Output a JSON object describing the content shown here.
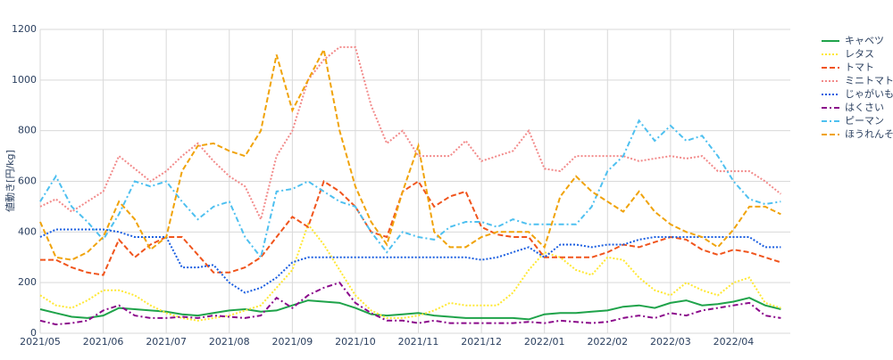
{
  "chart_data": {
    "type": "line",
    "y_label": "値動き[円/kg]",
    "x": [
      0,
      0.25,
      0.5,
      0.75,
      1,
      1.25,
      1.5,
      1.75,
      2,
      2.25,
      2.5,
      2.75,
      3,
      3.25,
      3.5,
      3.75,
      4,
      4.25,
      4.5,
      4.75,
      5,
      5.25,
      5.5,
      5.75,
      6,
      6.25,
      6.5,
      6.75,
      7,
      7.25,
      7.5,
      7.75,
      8,
      8.25,
      8.5,
      8.75,
      9,
      9.25,
      9.5,
      9.75,
      10,
      10.25,
      10.5,
      10.75,
      11,
      11.25,
      11.5,
      11.75
    ],
    "xlim": [
      0,
      11.9
    ],
    "xticks": [
      {
        "value": 0,
        "label": "2021/05"
      },
      {
        "value": 1,
        "label": "2021/06"
      },
      {
        "value": 2,
        "label": "2021/07"
      },
      {
        "value": 3,
        "label": "2021/08"
      },
      {
        "value": 4,
        "label": "2021/09"
      },
      {
        "value": 5,
        "label": "2021/10"
      },
      {
        "value": 6,
        "label": "2021/11"
      },
      {
        "value": 7,
        "label": "2021/12"
      },
      {
        "value": 8,
        "label": "2022/01"
      },
      {
        "value": 9,
        "label": "2022/02"
      },
      {
        "value": 10,
        "label": "2022/03"
      },
      {
        "value": 11,
        "label": "2022/04"
      }
    ],
    "ylim": [
      0,
      1200
    ],
    "yticks": [
      0,
      200,
      400,
      600,
      800,
      1000,
      1200
    ],
    "grid": true,
    "legend": "right",
    "series": [
      {
        "name": "キャベツ",
        "color": "#1fa34a",
        "dash": "solid",
        "values": [
          95,
          80,
          65,
          60,
          70,
          100,
          95,
          90,
          85,
          75,
          70,
          80,
          90,
          95,
          85,
          90,
          110,
          130,
          125,
          120,
          100,
          75,
          70,
          75,
          80,
          70,
          65,
          60,
          60,
          60,
          60,
          55,
          75,
          80,
          80,
          85,
          90,
          105,
          110,
          100,
          120,
          130,
          110,
          115,
          125,
          140,
          110,
          95
        ]
      },
      {
        "name": "レタス",
        "color": "#ffe833",
        "dash": "dot",
        "values": [
          150,
          110,
          100,
          130,
          170,
          170,
          150,
          110,
          80,
          60,
          50,
          60,
          70,
          90,
          110,
          180,
          250,
          430,
          350,
          250,
          150,
          90,
          60,
          60,
          70,
          90,
          120,
          110,
          110,
          110,
          160,
          250,
          320,
          300,
          250,
          230,
          300,
          290,
          220,
          170,
          150,
          200,
          170,
          150,
          200,
          220,
          120,
          100
        ]
      },
      {
        "name": "トマト",
        "color": "#f0541c",
        "dash": "dash",
        "values": [
          290,
          290,
          260,
          240,
          230,
          370,
          300,
          350,
          380,
          380,
          310,
          240,
          240,
          260,
          300,
          380,
          460,
          420,
          600,
          560,
          500,
          400,
          380,
          560,
          600,
          500,
          540,
          560,
          420,
          390,
          380,
          380,
          300,
          300,
          300,
          300,
          320,
          350,
          340,
          360,
          380,
          370,
          330,
          310,
          330,
          320,
          300,
          280
        ]
      },
      {
        "name": "ミニトマト",
        "color": "#f28a8a",
        "dash": "dot",
        "values": [
          500,
          530,
          480,
          520,
          560,
          700,
          650,
          600,
          640,
          700,
          750,
          680,
          620,
          580,
          450,
          700,
          800,
          1000,
          1080,
          1130,
          1130,
          900,
          750,
          800,
          700,
          700,
          700,
          760,
          680,
          700,
          720,
          800,
          650,
          640,
          700,
          700,
          700,
          700,
          680,
          690,
          700,
          690,
          700,
          640,
          640,
          640,
          600,
          550
        ]
      },
      {
        "name": "じゃがいも",
        "color": "#1a5ee0",
        "dash": "dot",
        "values": [
          380,
          410,
          410,
          410,
          410,
          400,
          380,
          380,
          380,
          260,
          260,
          270,
          200,
          160,
          180,
          220,
          280,
          300,
          300,
          300,
          300,
          300,
          300,
          300,
          300,
          300,
          300,
          300,
          290,
          300,
          320,
          340,
          300,
          350,
          350,
          340,
          350,
          350,
          370,
          380,
          380,
          380,
          380,
          380,
          380,
          380,
          340,
          340
        ]
      },
      {
        "name": "はくさい",
        "color": "#8b0a8b",
        "dash": "dashdot",
        "values": [
          50,
          35,
          40,
          50,
          90,
          110,
          70,
          60,
          60,
          65,
          60,
          70,
          65,
          60,
          70,
          140,
          100,
          150,
          180,
          200,
          120,
          80,
          50,
          50,
          40,
          50,
          40,
          40,
          40,
          40,
          40,
          45,
          40,
          50,
          45,
          40,
          45,
          60,
          70,
          60,
          80,
          70,
          90,
          100,
          110,
          120,
          70,
          60
        ]
      },
      {
        "name": "ピーマン",
        "color": "#4ec0f0",
        "dash": "dashdot",
        "values": [
          520,
          620,
          500,
          440,
          370,
          470,
          600,
          580,
          600,
          520,
          450,
          500,
          520,
          380,
          300,
          560,
          570,
          600,
          560,
          520,
          500,
          400,
          320,
          400,
          380,
          370,
          420,
          440,
          440,
          420,
          450,
          430,
          430,
          430,
          430,
          500,
          640,
          700,
          840,
          760,
          820,
          760,
          780,
          700,
          600,
          530,
          510,
          520
        ]
      },
      {
        "name": "ほうれんそう",
        "color": "#f0a30a",
        "dash": "dash",
        "values": [
          440,
          300,
          290,
          320,
          380,
          520,
          450,
          330,
          380,
          640,
          740,
          750,
          720,
          700,
          800,
          1100,
          880,
          1000,
          1120,
          800,
          580,
          440,
          350,
          560,
          740,
          400,
          340,
          340,
          380,
          400,
          400,
          400,
          340,
          540,
          620,
          560,
          520,
          480,
          560,
          480,
          430,
          400,
          380,
          340,
          410,
          500,
          500,
          470
        ]
      }
    ]
  }
}
